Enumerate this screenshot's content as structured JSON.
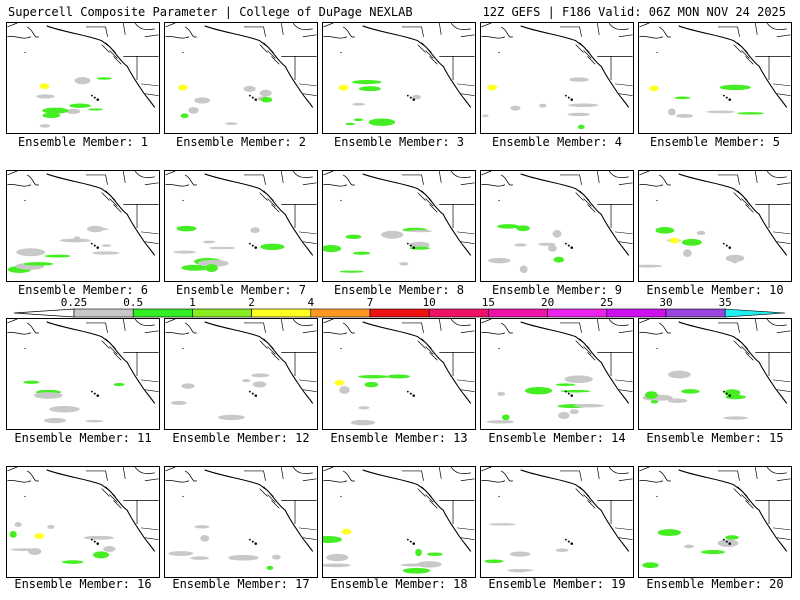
{
  "header": {
    "title": "Supercell Composite Parameter | College of DuPage NEXLAB",
    "run_info": "12Z GEFS | F186 Valid: 06Z MON NOV 24 2025"
  },
  "member_prefix": "Ensemble Member:",
  "members": [
    {
      "label": "Ensemble Member: 1"
    },
    {
      "label": "Ensemble Member: 2"
    },
    {
      "label": "Ensemble Member: 3"
    },
    {
      "label": "Ensemble Member: 4"
    },
    {
      "label": "Ensemble Member: 5"
    },
    {
      "label": "Ensemble Member: 6"
    },
    {
      "label": "Ensemble Member: 7"
    },
    {
      "label": "Ensemble Member: 8"
    },
    {
      "label": "Ensemble Member: 9"
    },
    {
      "label": "Ensemble Member: 10"
    },
    {
      "label": "Ensemble Member: 11"
    },
    {
      "label": "Ensemble Member: 12"
    },
    {
      "label": "Ensemble Member: 13"
    },
    {
      "label": "Ensemble Member: 14"
    },
    {
      "label": "Ensemble Member: 15"
    },
    {
      "label": "Ensemble Member: 16"
    },
    {
      "label": "Ensemble Member: 17"
    },
    {
      "label": "Ensemble Member: 18"
    },
    {
      "label": "Ensemble Member: 19"
    },
    {
      "label": "Ensemble Member: 20"
    }
  ],
  "legend": {
    "thresholds": [
      "0.25",
      "0.5",
      "1",
      "2",
      "4",
      "7",
      "10",
      "15",
      "20",
      "25",
      "30",
      "35"
    ],
    "colors": [
      "#c8c8c8",
      "#33ee22",
      "#88ee22",
      "#ffff22",
      "#ff9922",
      "#ee1111",
      "#ee1166",
      "#ee11aa",
      "#ee22ee",
      "#cc11ee",
      "#9944dd",
      "#22eeee"
    ]
  }
}
